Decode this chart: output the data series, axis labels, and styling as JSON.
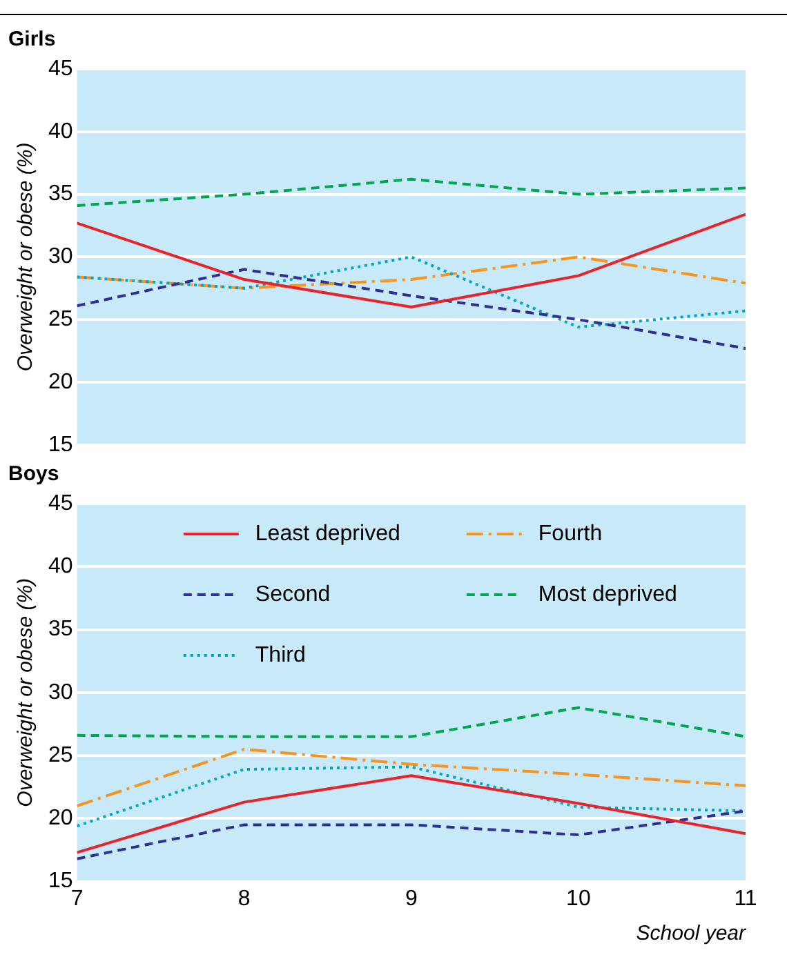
{
  "chart_data": [
    {
      "type": "line",
      "title": "Girls",
      "ylabel": "Overweight or obese (%)",
      "x": [
        7,
        8,
        9,
        10,
        11
      ],
      "xlim": [
        7,
        11
      ],
      "xticks": [
        7,
        8,
        9,
        10,
        11
      ],
      "ylim": [
        15,
        45
      ],
      "yticks": [
        15,
        20,
        25,
        30,
        35,
        40,
        45
      ],
      "grid": "y",
      "legend": false,
      "tick_labels": "y",
      "marker": "none",
      "series": [
        {
          "color": "#e8232b",
          "line_style": "solid",
          "values": [
            32.7,
            28.2,
            26,
            28.5,
            33.4
          ]
        },
        {
          "color": "#2e3192",
          "line_style": "dashed",
          "values": [
            26.1,
            29,
            26.9,
            25,
            22.7
          ]
        },
        {
          "color": "#00a6c2",
          "line_style": "dotted",
          "values": [
            28.4,
            27.5,
            30,
            24.4,
            25.7
          ]
        },
        {
          "color": "#f7941d",
          "line_style": "dashdot",
          "values": [
            28.4,
            27.5,
            28.2,
            30,
            27.9
          ]
        },
        {
          "color": "#00a651",
          "line_style": "dashed",
          "values": [
            34.1,
            35,
            36.2,
            35,
            35.5
          ]
        }
      ]
    },
    {
      "type": "line",
      "title": "Boys",
      "ylabel": "Overweight or obese (%)",
      "xlabel": "School year",
      "x": [
        7,
        8,
        9,
        10,
        11
      ],
      "xlim": [
        7,
        11
      ],
      "xticks": [
        7,
        8,
        9,
        10,
        11
      ],
      "ylim": [
        15,
        45
      ],
      "yticks": [
        15,
        20,
        25,
        30,
        35,
        40,
        45
      ],
      "grid": "y",
      "legend": "top",
      "marker": "none",
      "series": [
        {
          "name": "Least deprived",
          "color": "#e8232b",
          "line_style": "solid",
          "values": [
            17.3,
            21.3,
            23.4,
            21.2,
            18.8
          ]
        },
        {
          "name": "Second",
          "color": "#2e3192",
          "line_style": "dashed",
          "values": [
            16.8,
            19.5,
            19.5,
            18.7,
            20.6
          ]
        },
        {
          "name": "Third",
          "color": "#00a6c2",
          "line_style": "dotted",
          "values": [
            19.4,
            23.9,
            24.1,
            20.9,
            20.6
          ]
        },
        {
          "name": "Fourth",
          "color": "#f7941d",
          "line_style": "dashdot",
          "values": [
            21,
            25.5,
            24.3,
            23.5,
            22.6
          ]
        },
        {
          "name": "Most deprived",
          "color": "#00a651",
          "line_style": "dashed",
          "values": [
            26.6,
            26.5,
            26.5,
            28.8,
            26.5
          ]
        }
      ]
    }
  ]
}
